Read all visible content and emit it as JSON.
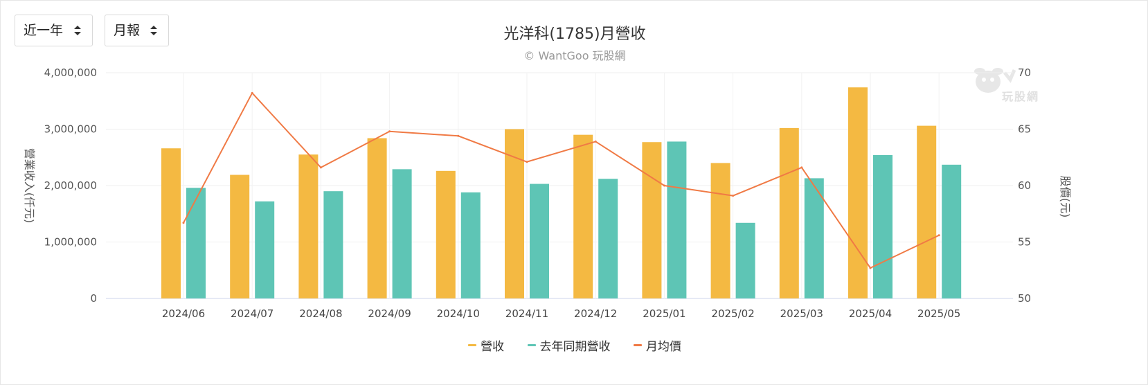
{
  "controls": {
    "range_label": "近一年",
    "period_label": "月報"
  },
  "watermark": {
    "text": "玩股網",
    "icon": "wantgoo-logo-icon"
  },
  "chart_data": {
    "type": "bar",
    "title": "光洋科(1785)月營收",
    "subtitle": "© WantGoo 玩股網",
    "categories": [
      "2024/06",
      "2024/07",
      "2024/08",
      "2024/09",
      "2024/10",
      "2024/11",
      "2024/12",
      "2025/01",
      "2025/02",
      "2025/03",
      "2025/04",
      "2025/05"
    ],
    "ylabel": "營業收入(仟元)",
    "y2label": "股價(元)",
    "ylim": [
      0,
      4000000
    ],
    "y2lim": [
      50,
      70
    ],
    "yticks": [
      "4,000,000",
      "3,000,000",
      "2,000,000",
      "1,000,000",
      "0"
    ],
    "y2ticks": [
      "70",
      "65",
      "60",
      "55",
      "50"
    ],
    "grid": true,
    "legend_position": "bottom",
    "series": [
      {
        "name": "營收",
        "type": "bar",
        "axis": "left",
        "color": "#f4b942",
        "values": [
          2660000,
          2190000,
          2550000,
          2840000,
          2260000,
          3000000,
          2900000,
          2770000,
          2400000,
          3020000,
          3740000,
          3060000
        ]
      },
      {
        "name": "去年同期營收",
        "type": "bar",
        "axis": "left",
        "color": "#5ec5b5",
        "values": [
          1960000,
          1720000,
          1900000,
          2290000,
          1880000,
          2030000,
          2120000,
          2780000,
          1340000,
          2130000,
          2540000,
          2370000
        ]
      },
      {
        "name": "月均價",
        "type": "line",
        "axis": "right",
        "color": "#f07a45",
        "values": [
          56.7,
          68.2,
          61.6,
          64.8,
          64.4,
          62.1,
          63.9,
          60.0,
          59.1,
          61.6,
          52.7,
          55.6
        ]
      }
    ]
  }
}
